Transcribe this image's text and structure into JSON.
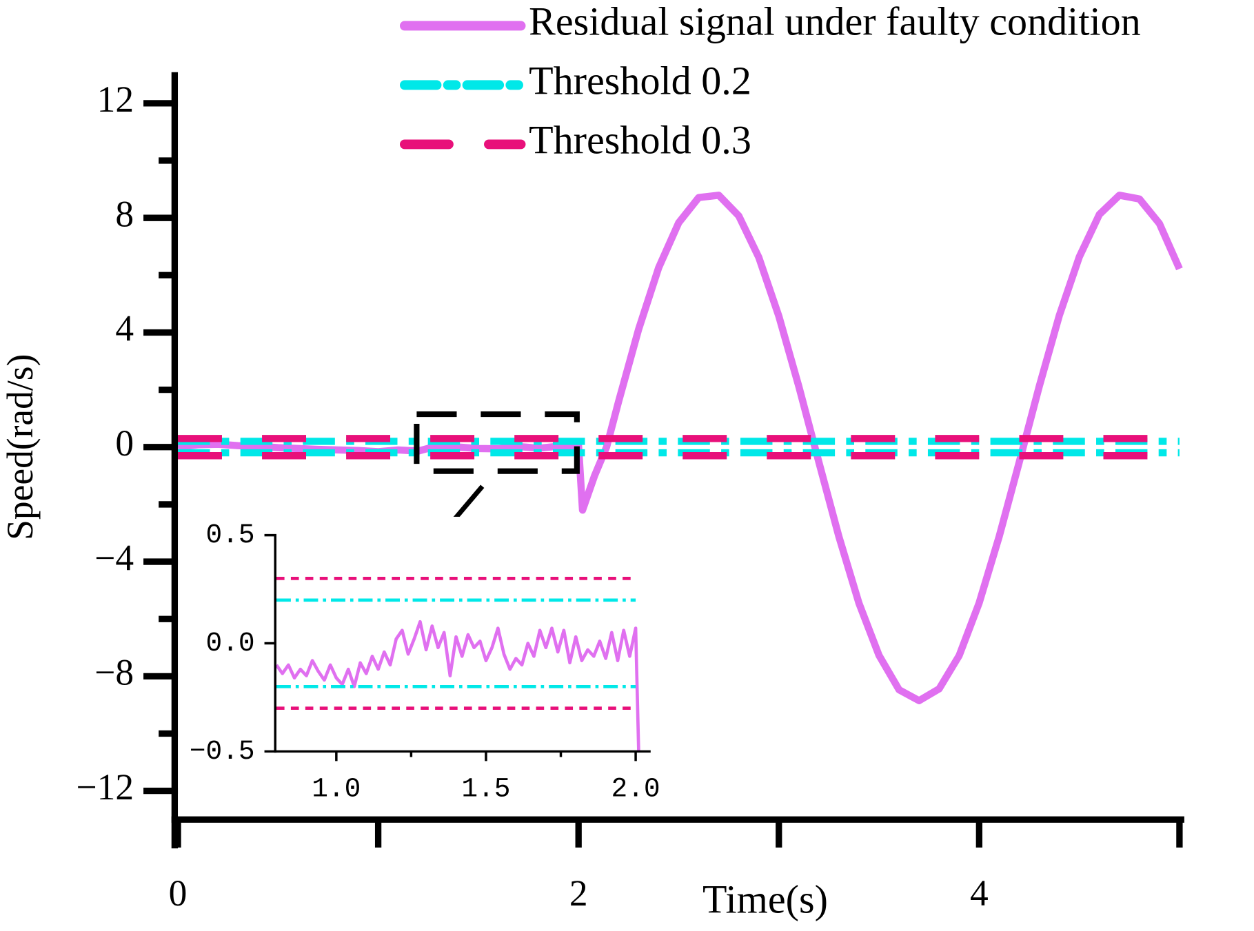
{
  "chart_data": [
    {
      "type": "line",
      "xlabel": "Time(s)",
      "ylabel": "Speed(rad/s)",
      "xlim": [
        0,
        5
      ],
      "ylim": [
        -13,
        13
      ],
      "xticks": [
        0,
        2,
        4
      ],
      "xminorticks": [
        1,
        3,
        5
      ],
      "yticks": [
        {
          "value": -12,
          "label": "−12"
        },
        {
          "value": -8,
          "label": "−8"
        },
        {
          "value": -4,
          "label": "−4"
        },
        0,
        4,
        8,
        12
      ],
      "yminorticks": [
        -10,
        -6,
        -2,
        2,
        6,
        10
      ],
      "legend": "upper right",
      "series": [
        {
          "name": "Residual signal under faulty condition",
          "color": "#e070f0",
          "dash": "solid",
          "x": [
            0,
            0.1,
            0.2,
            0.3,
            0.4,
            0.5,
            0.6,
            0.7,
            0.8,
            0.9,
            1.0,
            1.1,
            1.2,
            1.3,
            1.4,
            1.5,
            1.6,
            1.7,
            1.8,
            1.9,
            2.0,
            2.02,
            2.08,
            2.14,
            2.2,
            2.3,
            2.4,
            2.5,
            2.6,
            2.7,
            2.8,
            2.9,
            3.0,
            3.1,
            3.2,
            3.3,
            3.4,
            3.5,
            3.6,
            3.7,
            3.8,
            3.9,
            4.0,
            4.1,
            4.2,
            4.3,
            4.4,
            4.5,
            4.6,
            4.7,
            4.8,
            4.9,
            5.0
          ],
          "values": [
            0,
            0.08,
            0.1,
            0.05,
            0.03,
            -0.02,
            -0.05,
            -0.08,
            -0.1,
            -0.12,
            -0.16,
            -0.1,
            -0.14,
            0.05,
            0.0,
            -0.05,
            -0.06,
            0.02,
            -0.04,
            0.03,
            0.05,
            -2.2,
            -1.0,
            0,
            1.59,
            4.11,
            6.26,
            7.83,
            8.71,
            8.79,
            8.07,
            6.62,
            4.57,
            2.11,
            -0.53,
            -3.13,
            -5.45,
            -7.27,
            -8.47,
            -8.85,
            -8.44,
            -7.28,
            -5.44,
            -3.12,
            -0.53,
            2.12,
            4.59,
            6.64,
            8.12,
            8.79,
            8.66,
            7.8,
            6.22
          ]
        },
        {
          "name": "Threshold 0.2",
          "color": "#00e8e8",
          "dash": "dashdot",
          "x": [
            0,
            5
          ],
          "values": [
            0.2,
            0.2
          ],
          "lower": [
            -0.2,
            -0.2
          ]
        },
        {
          "name": "Threshold 0.3",
          "color": "#e8107a",
          "dash": "dash",
          "x": [
            0,
            5
          ],
          "values": [
            0.3,
            0.3
          ],
          "lower": [
            -0.3,
            -0.3
          ]
        }
      ]
    },
    {
      "type": "line",
      "xlim": [
        0.8,
        2.05
      ],
      "ylim": [
        -0.5,
        0.5
      ],
      "xticks": [
        {
          "value": 1.0,
          "label": "1.0"
        },
        {
          "value": 1.5,
          "label": "1.5"
        },
        {
          "value": 2.0,
          "label": "2.0"
        }
      ],
      "xminorticks": [
        1.25,
        1.75
      ],
      "yticks": [
        {
          "value": -0.5,
          "label": "−0.5"
        },
        {
          "value": 0.0,
          "label": "0.0"
        },
        0.5
      ],
      "yminorticks": [],
      "series": [
        {
          "color": "#e070f0",
          "dash": "solid",
          "x": [
            0.8,
            0.82,
            0.84,
            0.86,
            0.88,
            0.9,
            0.92,
            0.94,
            0.96,
            0.98,
            1.0,
            1.02,
            1.04,
            1.06,
            1.08,
            1.1,
            1.12,
            1.14,
            1.16,
            1.18,
            1.2,
            1.22,
            1.24,
            1.26,
            1.28,
            1.3,
            1.32,
            1.34,
            1.36,
            1.38,
            1.4,
            1.42,
            1.44,
            1.46,
            1.48,
            1.5,
            1.52,
            1.54,
            1.56,
            1.58,
            1.6,
            1.62,
            1.64,
            1.66,
            1.68,
            1.7,
            1.72,
            1.74,
            1.76,
            1.78,
            1.8,
            1.82,
            1.84,
            1.86,
            1.88,
            1.9,
            1.92,
            1.94,
            1.96,
            1.98,
            2.0,
            2.01
          ],
          "values": [
            -0.1,
            -0.14,
            -0.1,
            -0.16,
            -0.12,
            -0.15,
            -0.08,
            -0.13,
            -0.17,
            -0.1,
            -0.16,
            -0.19,
            -0.12,
            -0.2,
            -0.09,
            -0.14,
            -0.06,
            -0.12,
            -0.04,
            -0.1,
            0.02,
            0.06,
            -0.05,
            0.02,
            0.1,
            -0.03,
            0.08,
            -0.02,
            0.05,
            -0.15,
            0.03,
            -0.06,
            0.04,
            -0.02,
            0.01,
            -0.08,
            -0.02,
            0.07,
            -0.05,
            -0.12,
            -0.07,
            -0.1,
            0.0,
            -0.06,
            0.06,
            -0.02,
            0.07,
            -0.04,
            0.06,
            -0.09,
            0.03,
            -0.08,
            -0.03,
            -0.06,
            0.01,
            -0.07,
            0.05,
            -0.08,
            0.06,
            -0.06,
            0.07,
            -0.5
          ]
        },
        {
          "color": "#00e8e8",
          "dash": "dashdot",
          "x": [
            0.8,
            2.0
          ],
          "values": [
            0.2,
            0.2
          ],
          "lower": [
            -0.2,
            -0.2
          ]
        },
        {
          "color": "#e8107a",
          "dash": "dash",
          "x": [
            0.8,
            2.0
          ],
          "values": [
            0.3,
            0.3
          ],
          "lower": [
            -0.3,
            -0.3
          ]
        }
      ]
    }
  ]
}
